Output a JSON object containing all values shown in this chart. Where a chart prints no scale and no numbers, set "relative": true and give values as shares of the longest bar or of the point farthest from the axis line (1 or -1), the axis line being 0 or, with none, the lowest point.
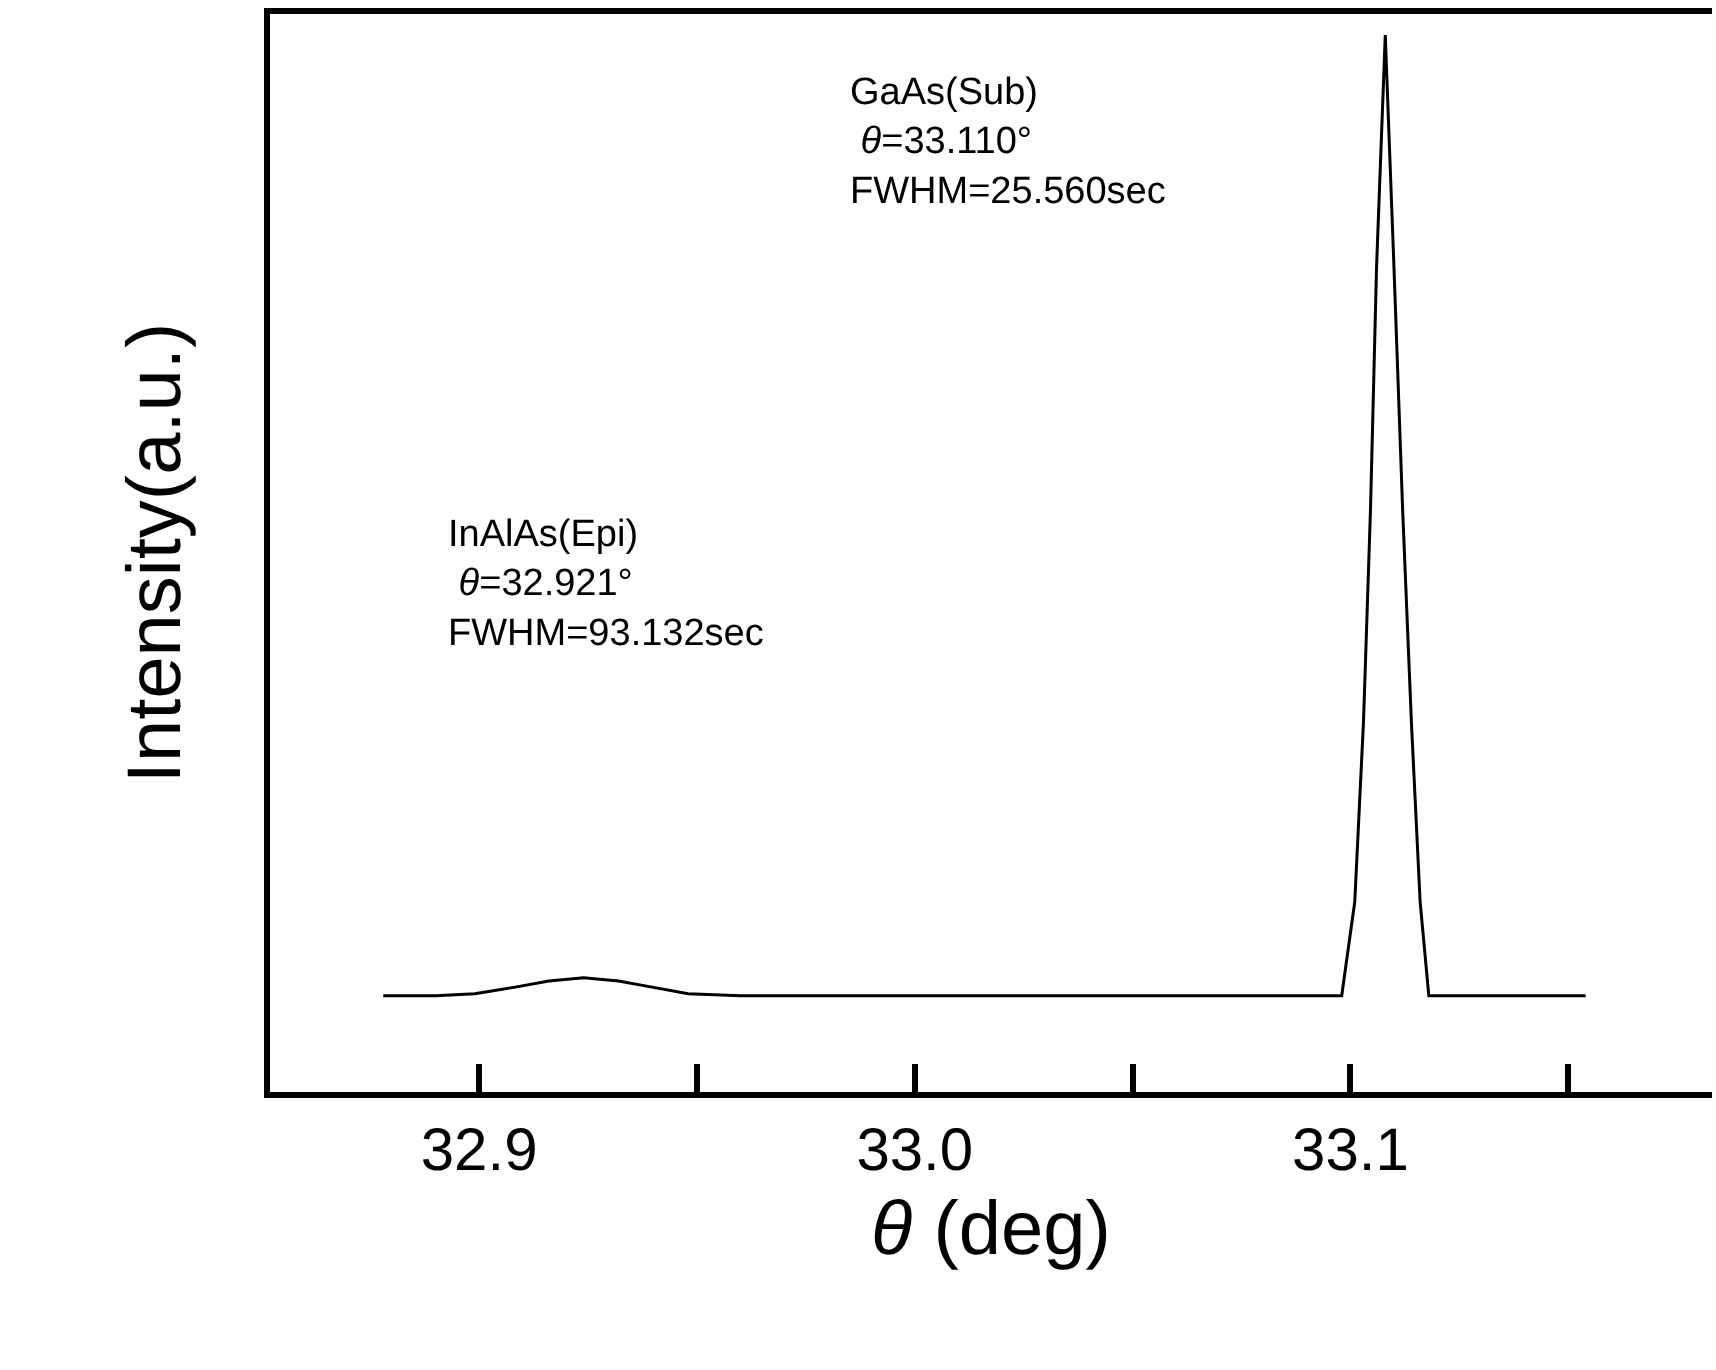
{
  "chart_data": {
    "type": "line",
    "relative": true,
    "xlabel": "θ (deg)",
    "ylabel": "Intensity(a.u.)",
    "x": [
      32.878,
      32.89,
      32.899,
      32.908,
      32.916,
      32.924,
      32.932,
      32.94,
      32.948,
      32.96,
      33.098,
      33.101,
      33.103,
      33.1046,
      33.106,
      33.108,
      33.11,
      33.112,
      33.114,
      33.116,
      33.118,
      33.154
    ],
    "series": [
      {
        "color": "#000000",
        "values": [
          0.091,
          0.091,
          0.093,
          0.099,
          0.105,
          0.108,
          0.105,
          0.099,
          0.093,
          0.091,
          0.091,
          0.18,
          0.35,
          0.55,
          0.78,
          1.0,
          0.78,
          0.55,
          0.35,
          0.18,
          0.091,
          0.091
        ]
      }
    ],
    "xlim": [
      32.852,
      33.183
    ],
    "xticks": [
      32.9,
      {
        "value": 32.95,
        "label": null
      },
      "33.0",
      {
        "value": 33.05,
        "label": null
      },
      33.1,
      {
        "value": 33.15,
        "label": null
      }
    ],
    "annotations": [
      "GaAs(Sub)\n θ=33.110°\nFWHM=25.560sec",
      "InAlAs(Epi)\n θ=32.921°\nFWHM=93.132sec"
    ],
    "marker": "none",
    "line_style": "solid"
  }
}
